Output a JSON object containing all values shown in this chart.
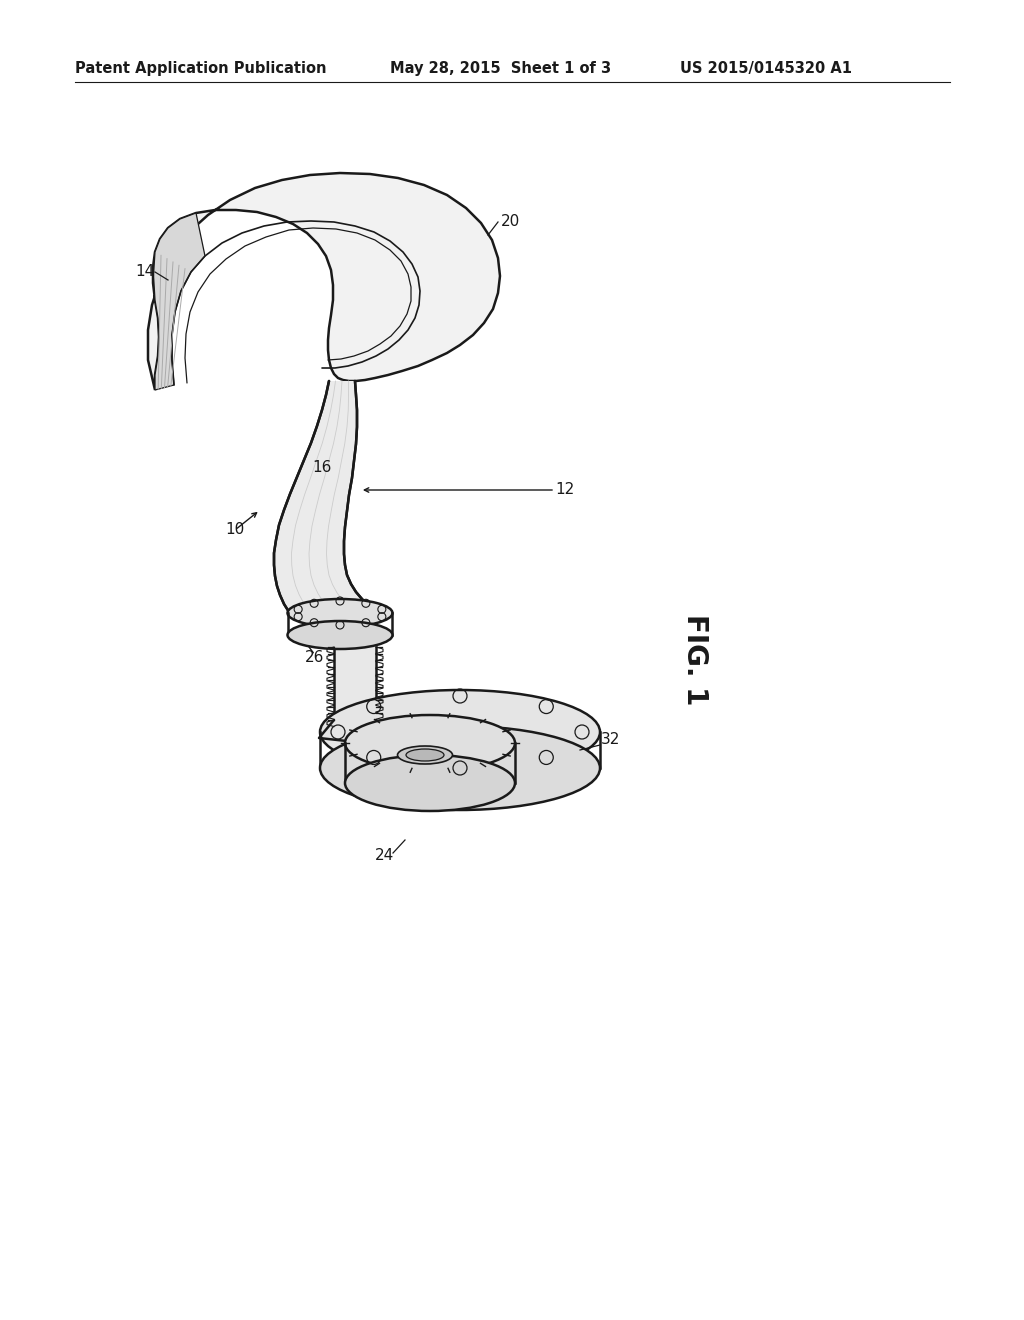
{
  "bg_color": "#ffffff",
  "header_left": "Patent Application Publication",
  "header_mid": "May 28, 2015  Sheet 1 of 3",
  "header_right": "US 2015/0145320 A1",
  "fig_label": "FIG. 1",
  "line_color": "#1a1a1a",
  "label_fontsize": 11,
  "header_fontsize": 10.5,
  "fig_label_fontsize": 20
}
